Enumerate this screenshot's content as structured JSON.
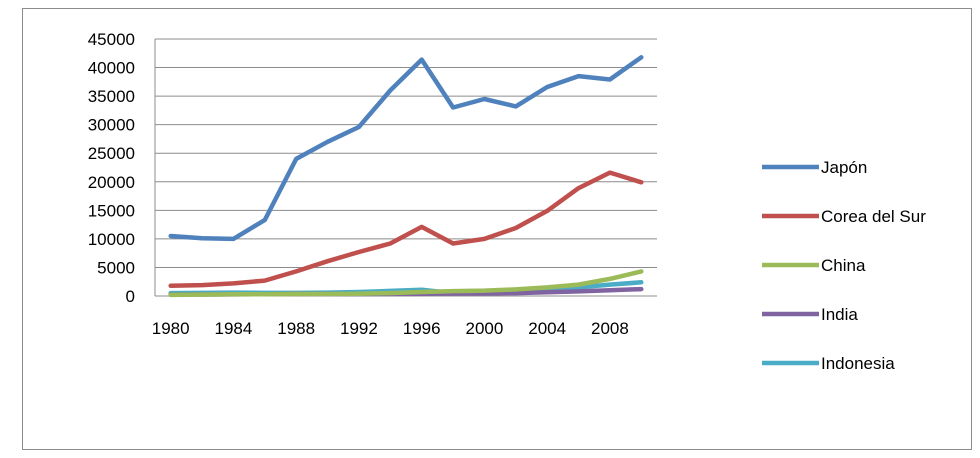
{
  "chart_data": {
    "type": "line",
    "title": "",
    "xlabel": "",
    "ylabel": "",
    "ylim": [
      0,
      45000
    ],
    "yticks": [
      0,
      5000,
      10000,
      15000,
      20000,
      25000,
      30000,
      35000,
      40000,
      45000
    ],
    "x": [
      1980,
      1982,
      1984,
      1986,
      1988,
      1990,
      1992,
      1994,
      1996,
      1998,
      2000,
      2002,
      2004,
      2006,
      2008,
      2010
    ],
    "xtick_labels": [
      "1980",
      "1984",
      "1988",
      "1992",
      "1996",
      "2000",
      "2004",
      "2008"
    ],
    "grid": "horizontal",
    "legend_position": "right",
    "series": [
      {
        "name": "Japón",
        "color": "#4f81bd",
        "values": [
          10500,
          10100,
          10000,
          13300,
          24000,
          27000,
          29600,
          36000,
          41400,
          33000,
          34500,
          33200,
          36600,
          38500,
          37900,
          41800
        ]
      },
      {
        "name": "Corea del Sur",
        "color": "#c0504d",
        "values": [
          1800,
          1900,
          2200,
          2700,
          4300,
          6100,
          7700,
          9200,
          12100,
          9200,
          10000,
          11900,
          14900,
          18900,
          21600,
          19900
        ]
      },
      {
        "name": "China",
        "color": "#9bbb59",
        "values": [
          200,
          250,
          300,
          300,
          350,
          350,
          400,
          500,
          700,
          850,
          950,
          1150,
          1500,
          2000,
          3000,
          4300
        ]
      },
      {
        "name": "India",
        "color": "#8064a2",
        "values": [
          250,
          270,
          280,
          320,
          350,
          350,
          350,
          350,
          400,
          430,
          450,
          500,
          650,
          800,
          1000,
          1200
        ]
      },
      {
        "name": "Indonesia",
        "color": "#4bacc6",
        "values": [
          500,
          550,
          600,
          550,
          550,
          600,
          700,
          900,
          1100,
          500,
          750,
          900,
          1200,
          1500,
          2000,
          2400
        ]
      }
    ]
  }
}
